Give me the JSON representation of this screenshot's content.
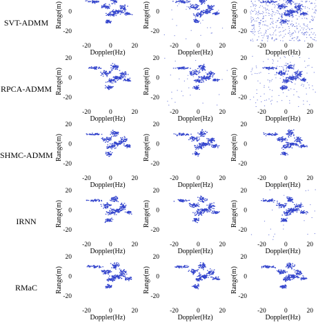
{
  "figure": {
    "row_labels": [
      "SVT-ADMM",
      "RPCA-ADMM",
      "SHMC-ADMM",
      "IRNN",
      "RMaC"
    ],
    "x_axis_label": "Doppler(Hz)",
    "y_axis_label": "Range(m)",
    "x_ticks": [
      "-20",
      "0",
      "20"
    ],
    "y_ticks": [
      "20",
      "0",
      "-20"
    ],
    "x_range": [
      -30,
      25
    ],
    "y_range": [
      -30,
      22
    ],
    "scatter_color": "#3344cc",
    "panel_noise_levels": [
      [
        0.0,
        0.05,
        1.0
      ],
      [
        0.0,
        0.05,
        0.25
      ],
      [
        0.0,
        0.0,
        0.0
      ],
      [
        0.0,
        0.0,
        0.05
      ],
      [
        0.0,
        0.0,
        0.0
      ]
    ]
  }
}
